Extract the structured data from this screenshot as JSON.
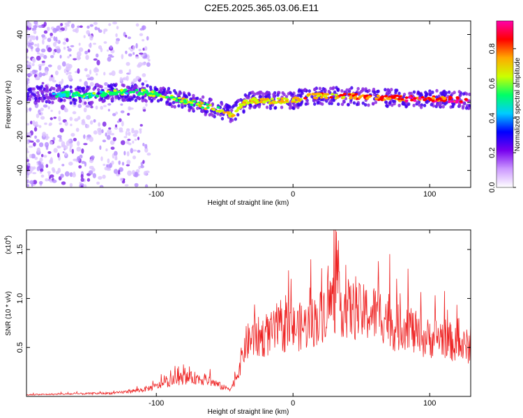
{
  "title": "C2E5.2025.365.03.06.E11",
  "colors": {
    "axis": "#000000",
    "snr_line": "#ee2222",
    "spectrogram_low": "#8a2be2",
    "spectrogram_high": "#ff0000"
  },
  "chart_data": [
    {
      "type": "heatmap",
      "name": "spectrogram",
      "title": "C2E5.2025.365.03.06.E11",
      "xlabel": "Height of straight line (km)",
      "ylabel": "Frequency (Hz)",
      "xlim": [
        -195,
        130
      ],
      "ylim": [
        -50,
        48
      ],
      "xticks": [
        -100,
        0,
        100
      ],
      "yticks": [
        -40,
        -20,
        0,
        20,
        40
      ],
      "colorbar": {
        "label": "Normalized spectral amplitude",
        "range": [
          0.0,
          0.96
        ],
        "ticks": [
          0.0,
          0.2,
          0.4,
          0.6,
          0.8
        ],
        "tick_labels": [
          "0.0",
          "0.2",
          "0.4",
          "0.6",
          "0.8"
        ],
        "colormap": [
          "#ffffff",
          "#cc99ff",
          "#7700ee",
          "#0000ff",
          "#00ccff",
          "#00ff66",
          "#ccff00",
          "#ffaa00",
          "#ff0000",
          "#ff00aa"
        ]
      },
      "ridge": {
        "x": [
          -195,
          -170,
          -150,
          -140,
          -130,
          -110,
          -100,
          -90,
          -80,
          -70,
          -60,
          -50,
          -45,
          -40,
          -35,
          -30,
          -20,
          -10,
          0,
          10,
          30,
          60,
          90,
          110,
          130
        ],
        "freq": [
          4,
          5,
          4,
          5,
          6,
          6,
          5,
          3,
          1,
          -1,
          -3,
          -5,
          -8,
          -3,
          0,
          1,
          1,
          1,
          1,
          4,
          4,
          3,
          2,
          2,
          1
        ]
      }
    },
    {
      "type": "line",
      "name": "snr",
      "xlabel": "Height of straight line (km)",
      "ylabel": "SNR (10 * v/v)",
      "yscale_label": "(x10",
      "yscale_exponent": "4",
      "xlim": [
        -195,
        130
      ],
      "ylim": [
        0.0,
        1.7
      ],
      "xticks": [
        -100,
        0,
        100
      ],
      "yticks": [
        0.5,
        1.0,
        1.5
      ],
      "ytick_labels": [
        "0.5",
        "1.0",
        "1.5"
      ],
      "series": [
        {
          "name": "SNR",
          "x": [
            -195,
            -160,
            -130,
            -110,
            -100,
            -90,
            -80,
            -70,
            -60,
            -50,
            -45,
            -40,
            -35,
            -30,
            -20,
            -10,
            0,
            10,
            20,
            25,
            30,
            35,
            40,
            50,
            60,
            70,
            75,
            80,
            85,
            90,
            100,
            110,
            120,
            130
          ],
          "env": [
            0.02,
            0.03,
            0.04,
            0.08,
            0.12,
            0.18,
            0.22,
            0.22,
            0.18,
            0.1,
            0.1,
            0.3,
            0.62,
            0.7,
            0.72,
            0.8,
            0.82,
            0.85,
            0.95,
            1.1,
            1.15,
            1.1,
            1.05,
            1.0,
            1.0,
            0.95,
            0.8,
            0.85,
            0.88,
            0.7,
            0.7,
            0.72,
            0.6,
            0.6
          ],
          "peak_max": 1.72
        }
      ]
    }
  ]
}
